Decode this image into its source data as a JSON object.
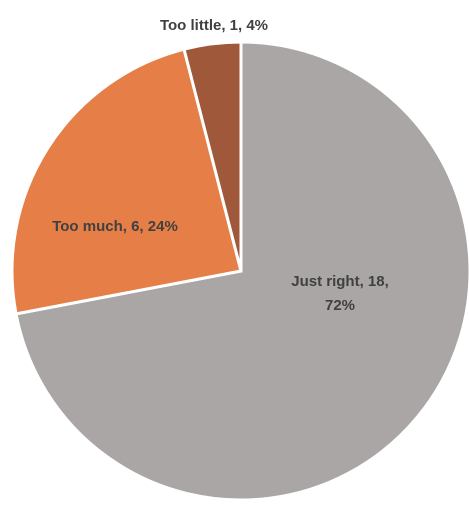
{
  "chart_data": {
    "type": "pie",
    "title": "",
    "start_angle_deg": 0,
    "direction": "clockwise",
    "legend": "none",
    "slices": [
      {
        "category": "Just right",
        "value": 18,
        "percent": "72%",
        "color": "#A9A6A5",
        "label_lines": [
          "Just right, 18,",
          "72%"
        ]
      },
      {
        "category": "Too much",
        "value": 6,
        "percent": "24%",
        "color": "#E57E47",
        "label_lines": [
          "Too much, 6, 24%"
        ]
      },
      {
        "category": "Too little",
        "value": 1,
        "percent": "4%",
        "color": "#A0583A",
        "label_lines": [
          "Too little, 1, 4%"
        ]
      }
    ]
  }
}
